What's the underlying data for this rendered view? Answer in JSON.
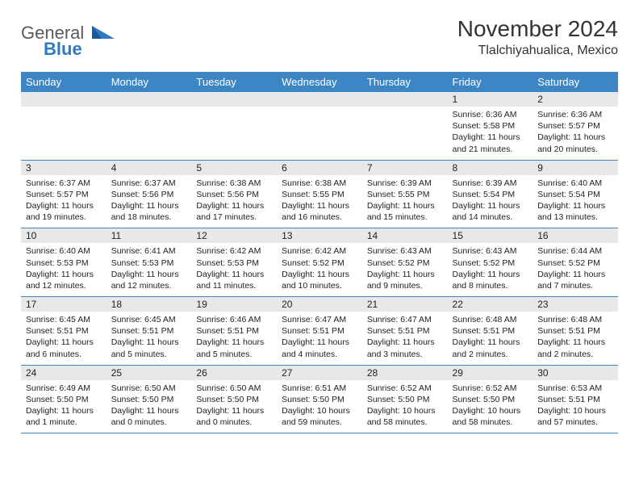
{
  "header": {
    "logo_text_general": "General",
    "logo_text_blue": "Blue",
    "logo_color_general": "#5a5a5a",
    "logo_color_blue": "#2f7ac0",
    "month_title": "November 2024",
    "location": "Tlalchiyahualica, Mexico"
  },
  "colors": {
    "header_bg": "#3d86c6",
    "header_text": "#ffffff",
    "daynum_bg": "#e8e8e8",
    "cell_border": "#3d86c6",
    "body_text": "#222222",
    "page_bg": "#ffffff"
  },
  "day_headers": [
    "Sunday",
    "Monday",
    "Tuesday",
    "Wednesday",
    "Thursday",
    "Friday",
    "Saturday"
  ],
  "weeks": [
    [
      {
        "blank": true
      },
      {
        "blank": true
      },
      {
        "blank": true
      },
      {
        "blank": true
      },
      {
        "blank": true
      },
      {
        "day": "1",
        "sunrise": "Sunrise: 6:36 AM",
        "sunset": "Sunset: 5:58 PM",
        "daylight": "Daylight: 11 hours and 21 minutes."
      },
      {
        "day": "2",
        "sunrise": "Sunrise: 6:36 AM",
        "sunset": "Sunset: 5:57 PM",
        "daylight": "Daylight: 11 hours and 20 minutes."
      }
    ],
    [
      {
        "day": "3",
        "sunrise": "Sunrise: 6:37 AM",
        "sunset": "Sunset: 5:57 PM",
        "daylight": "Daylight: 11 hours and 19 minutes."
      },
      {
        "day": "4",
        "sunrise": "Sunrise: 6:37 AM",
        "sunset": "Sunset: 5:56 PM",
        "daylight": "Daylight: 11 hours and 18 minutes."
      },
      {
        "day": "5",
        "sunrise": "Sunrise: 6:38 AM",
        "sunset": "Sunset: 5:56 PM",
        "daylight": "Daylight: 11 hours and 17 minutes."
      },
      {
        "day": "6",
        "sunrise": "Sunrise: 6:38 AM",
        "sunset": "Sunset: 5:55 PM",
        "daylight": "Daylight: 11 hours and 16 minutes."
      },
      {
        "day": "7",
        "sunrise": "Sunrise: 6:39 AM",
        "sunset": "Sunset: 5:55 PM",
        "daylight": "Daylight: 11 hours and 15 minutes."
      },
      {
        "day": "8",
        "sunrise": "Sunrise: 6:39 AM",
        "sunset": "Sunset: 5:54 PM",
        "daylight": "Daylight: 11 hours and 14 minutes."
      },
      {
        "day": "9",
        "sunrise": "Sunrise: 6:40 AM",
        "sunset": "Sunset: 5:54 PM",
        "daylight": "Daylight: 11 hours and 13 minutes."
      }
    ],
    [
      {
        "day": "10",
        "sunrise": "Sunrise: 6:40 AM",
        "sunset": "Sunset: 5:53 PM",
        "daylight": "Daylight: 11 hours and 12 minutes."
      },
      {
        "day": "11",
        "sunrise": "Sunrise: 6:41 AM",
        "sunset": "Sunset: 5:53 PM",
        "daylight": "Daylight: 11 hours and 12 minutes."
      },
      {
        "day": "12",
        "sunrise": "Sunrise: 6:42 AM",
        "sunset": "Sunset: 5:53 PM",
        "daylight": "Daylight: 11 hours and 11 minutes."
      },
      {
        "day": "13",
        "sunrise": "Sunrise: 6:42 AM",
        "sunset": "Sunset: 5:52 PM",
        "daylight": "Daylight: 11 hours and 10 minutes."
      },
      {
        "day": "14",
        "sunrise": "Sunrise: 6:43 AM",
        "sunset": "Sunset: 5:52 PM",
        "daylight": "Daylight: 11 hours and 9 minutes."
      },
      {
        "day": "15",
        "sunrise": "Sunrise: 6:43 AM",
        "sunset": "Sunset: 5:52 PM",
        "daylight": "Daylight: 11 hours and 8 minutes."
      },
      {
        "day": "16",
        "sunrise": "Sunrise: 6:44 AM",
        "sunset": "Sunset: 5:52 PM",
        "daylight": "Daylight: 11 hours and 7 minutes."
      }
    ],
    [
      {
        "day": "17",
        "sunrise": "Sunrise: 6:45 AM",
        "sunset": "Sunset: 5:51 PM",
        "daylight": "Daylight: 11 hours and 6 minutes."
      },
      {
        "day": "18",
        "sunrise": "Sunrise: 6:45 AM",
        "sunset": "Sunset: 5:51 PM",
        "daylight": "Daylight: 11 hours and 5 minutes."
      },
      {
        "day": "19",
        "sunrise": "Sunrise: 6:46 AM",
        "sunset": "Sunset: 5:51 PM",
        "daylight": "Daylight: 11 hours and 5 minutes."
      },
      {
        "day": "20",
        "sunrise": "Sunrise: 6:47 AM",
        "sunset": "Sunset: 5:51 PM",
        "daylight": "Daylight: 11 hours and 4 minutes."
      },
      {
        "day": "21",
        "sunrise": "Sunrise: 6:47 AM",
        "sunset": "Sunset: 5:51 PM",
        "daylight": "Daylight: 11 hours and 3 minutes."
      },
      {
        "day": "22",
        "sunrise": "Sunrise: 6:48 AM",
        "sunset": "Sunset: 5:51 PM",
        "daylight": "Daylight: 11 hours and 2 minutes."
      },
      {
        "day": "23",
        "sunrise": "Sunrise: 6:48 AM",
        "sunset": "Sunset: 5:51 PM",
        "daylight": "Daylight: 11 hours and 2 minutes."
      }
    ],
    [
      {
        "day": "24",
        "sunrise": "Sunrise: 6:49 AM",
        "sunset": "Sunset: 5:50 PM",
        "daylight": "Daylight: 11 hours and 1 minute."
      },
      {
        "day": "25",
        "sunrise": "Sunrise: 6:50 AM",
        "sunset": "Sunset: 5:50 PM",
        "daylight": "Daylight: 11 hours and 0 minutes."
      },
      {
        "day": "26",
        "sunrise": "Sunrise: 6:50 AM",
        "sunset": "Sunset: 5:50 PM",
        "daylight": "Daylight: 11 hours and 0 minutes."
      },
      {
        "day": "27",
        "sunrise": "Sunrise: 6:51 AM",
        "sunset": "Sunset: 5:50 PM",
        "daylight": "Daylight: 10 hours and 59 minutes."
      },
      {
        "day": "28",
        "sunrise": "Sunrise: 6:52 AM",
        "sunset": "Sunset: 5:50 PM",
        "daylight": "Daylight: 10 hours and 58 minutes."
      },
      {
        "day": "29",
        "sunrise": "Sunrise: 6:52 AM",
        "sunset": "Sunset: 5:50 PM",
        "daylight": "Daylight: 10 hours and 58 minutes."
      },
      {
        "day": "30",
        "sunrise": "Sunrise: 6:53 AM",
        "sunset": "Sunset: 5:51 PM",
        "daylight": "Daylight: 10 hours and 57 minutes."
      }
    ]
  ]
}
